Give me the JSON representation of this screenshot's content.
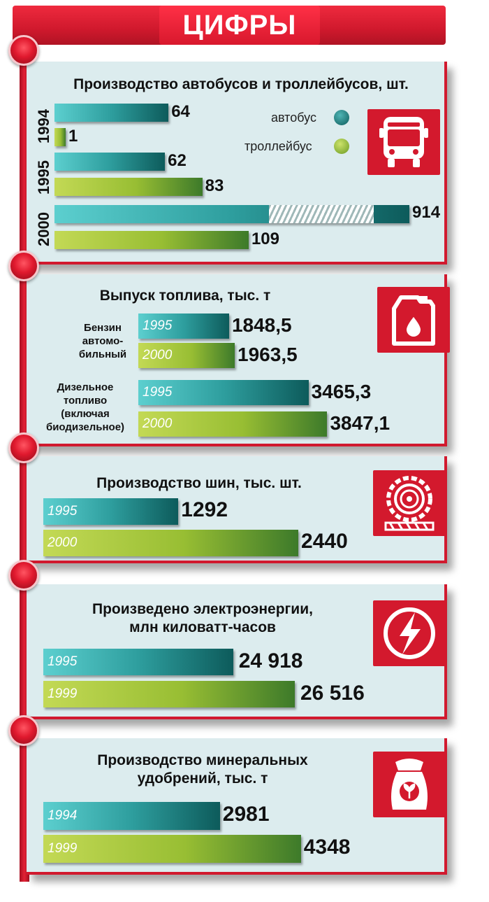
{
  "header": {
    "title": "ЦИФРЫ"
  },
  "colors": {
    "accent": "#d3192d",
    "panel_bg": "#dcecee",
    "bus": "#1f8585",
    "trolleybus": "#99be33"
  },
  "legend": {
    "bus": "автобус",
    "trolleybus": "троллейбус"
  },
  "sections": {
    "vehicles": {
      "title": "Производство автобусов и троллейбусов, шт.",
      "icon": "bus-icon"
    },
    "fuel": {
      "title": "Выпуск топлива, тыс. т",
      "icon": "fuel-canister-icon",
      "cat1": [
        "Бензин",
        "автомо-",
        "бильный"
      ],
      "cat2": [
        "Дизельное",
        "топливо",
        "(включая",
        "биодизельное)"
      ]
    },
    "tires": {
      "title": "Производство шин, тыс. шт.",
      "icon": "tire-icon"
    },
    "electricity": {
      "title_line1": "Произведено электроэнергии,",
      "title_line2": "млн киловатт-часов",
      "icon": "lightning-icon"
    },
    "fertilizers": {
      "title_line1": "Производство минеральных",
      "title_line2": "удобрений, тыс. т",
      "icon": "fertilizer-bag-icon"
    }
  },
  "chart_data": [
    {
      "type": "bar",
      "title": "Производство автобусов и троллейбусов, шт.",
      "categories": [
        "1994",
        "1995",
        "2000"
      ],
      "series": [
        {
          "name": "автобус",
          "values": [
            64,
            62,
            914
          ],
          "labels": [
            "64",
            "62",
            "914"
          ]
        },
        {
          "name": "троллейбус",
          "values": [
            1,
            83,
            109
          ],
          "labels": [
            "1",
            "83",
            "109"
          ]
        }
      ]
    },
    {
      "type": "bar",
      "title": "Выпуск топлива, тыс. т",
      "categories": [
        "Бензин автомобильный",
        "Дизельное топливо (включая биодизельное)"
      ],
      "series": [
        {
          "values": [
            1848.5,
            3465.3
          ],
          "labels": [
            "1848,5",
            "3465,3"
          ],
          "years": [
            "1995",
            "1995"
          ]
        },
        {
          "values": [
            1963.5,
            3847.1
          ],
          "labels": [
            "1963,5",
            "3847,1"
          ],
          "years": [
            "2000",
            "2000"
          ]
        }
      ]
    },
    {
      "type": "bar",
      "title": "Производство шин, тыс. шт.",
      "categories": [
        "1995",
        "2000"
      ],
      "values": [
        1292,
        2440
      ],
      "labels": [
        "1292",
        "2440"
      ]
    },
    {
      "type": "bar",
      "title": "Произведено электроэнергии, млн киловатт-часов",
      "categories": [
        "1995",
        "1999"
      ],
      "values": [
        24918,
        26516
      ],
      "labels": [
        "24 918",
        "26 516"
      ]
    },
    {
      "type": "bar",
      "title": "Производство минеральных удобрений, тыс. т",
      "categories": [
        "1994",
        "1999"
      ],
      "values": [
        2981,
        4348
      ],
      "labels": [
        "2981",
        "4348"
      ]
    }
  ]
}
